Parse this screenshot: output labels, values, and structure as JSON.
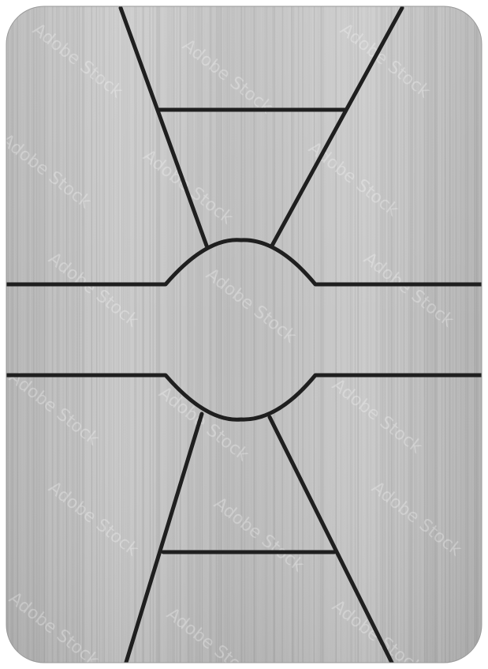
{
  "plate": {
    "label": "brushed-metal-card",
    "colors": {
      "background": "#ffffff",
      "metal_light": "#cfcfcf",
      "metal_mid": "#b9b9b9",
      "metal_dark": "#a6a6a6",
      "stroke": "#1f1f1f"
    }
  },
  "watermark": {
    "text": "Adobe Stock"
  }
}
